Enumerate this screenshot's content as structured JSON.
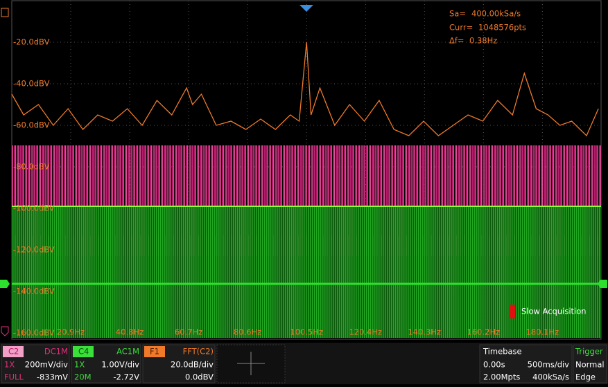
{
  "chart_data": {
    "type": "line",
    "x": [
      1,
      5,
      10,
      15,
      20,
      25,
      30,
      35,
      40,
      45,
      50,
      55,
      60,
      62,
      65,
      70,
      75,
      80,
      85,
      90,
      95,
      98,
      100.5,
      102,
      105,
      110,
      115,
      120,
      125,
      130,
      135,
      140,
      145,
      150,
      155,
      160,
      165,
      170,
      174,
      178,
      182,
      186,
      190,
      195,
      199
    ],
    "values": [
      -45,
      -55,
      -50,
      -60,
      -52,
      -62,
      -55,
      -58,
      -52,
      -60,
      -48,
      -55,
      -42,
      -50,
      -45,
      -60,
      -58,
      -62,
      -57,
      -62,
      -55,
      -58,
      -20,
      -55,
      -42,
      -60,
      -50,
      -58,
      -48,
      -62,
      -65,
      -58,
      -65,
      -60,
      -55,
      -58,
      -48,
      -55,
      -35,
      -52,
      -55,
      -60,
      -58,
      -65,
      -52
    ],
    "color": "#f07a2a",
    "xlim": [
      1.0,
      199.9
    ],
    "ylim": [
      -160,
      0
    ],
    "xticks": [
      {
        "value": 20.9,
        "label": "20.9Hz"
      },
      {
        "value": 40.8,
        "label": "40.8Hz"
      },
      {
        "value": 60.7,
        "label": "60.7Hz"
      },
      {
        "value": 80.6,
        "label": "80.6Hz"
      },
      {
        "value": 100.5,
        "label": "100.5Hz"
      },
      {
        "value": 120.4,
        "label": "120.4Hz"
      },
      {
        "value": 140.3,
        "label": "140.3Hz"
      },
      {
        "value": 160.2,
        "label": "160.2Hz"
      },
      {
        "value": 180.1,
        "label": "180.1Hz"
      }
    ],
    "yticks": [
      {
        "value": -20,
        "label": "-20.0dBV"
      },
      {
        "value": -40,
        "label": "-40.0dBV"
      },
      {
        "value": -60,
        "label": "-60.0dBV"
      },
      {
        "value": -80,
        "label": "-80.0dBV"
      },
      {
        "value": -100,
        "label": "-100.0dBV"
      },
      {
        "value": -120,
        "label": "-120.0dBV"
      },
      {
        "value": -140,
        "label": "-140.0dBV"
      },
      {
        "value": -160,
        "label": "-160.0dBV"
      }
    ],
    "grid": true
  },
  "info": {
    "sa_label": "Sa=",
    "sa": "400.00kSa/s",
    "curr_label": "Curr=",
    "curr": "1048576pts",
    "df_label": "Δf=",
    "df": "0.38Hz"
  },
  "status": "Slow Acquisition",
  "channels": [
    {
      "name": "C2",
      "coupling": "DC1M",
      "probe": "1X",
      "scale": "200mV/div",
      "bw": "FULL",
      "offset": "-833mV"
    },
    {
      "name": "C4",
      "coupling": "AC1M",
      "probe": "1X",
      "scale": "1.00V/div",
      "bw": "20M",
      "offset": "-2.72V"
    },
    {
      "name": "F1",
      "coupling": "FFT(C2)",
      "scale": "20.0dB/div",
      "offset": "0.0dBV"
    }
  ],
  "timebase": {
    "title": "Timebase",
    "delay": "0.00s",
    "scale": "500ms/div",
    "depth": "2.00Mpts",
    "rate": "400kSa/s"
  },
  "trigger": {
    "title": "Trigger",
    "mode": "Normal",
    "type": "Edge"
  }
}
